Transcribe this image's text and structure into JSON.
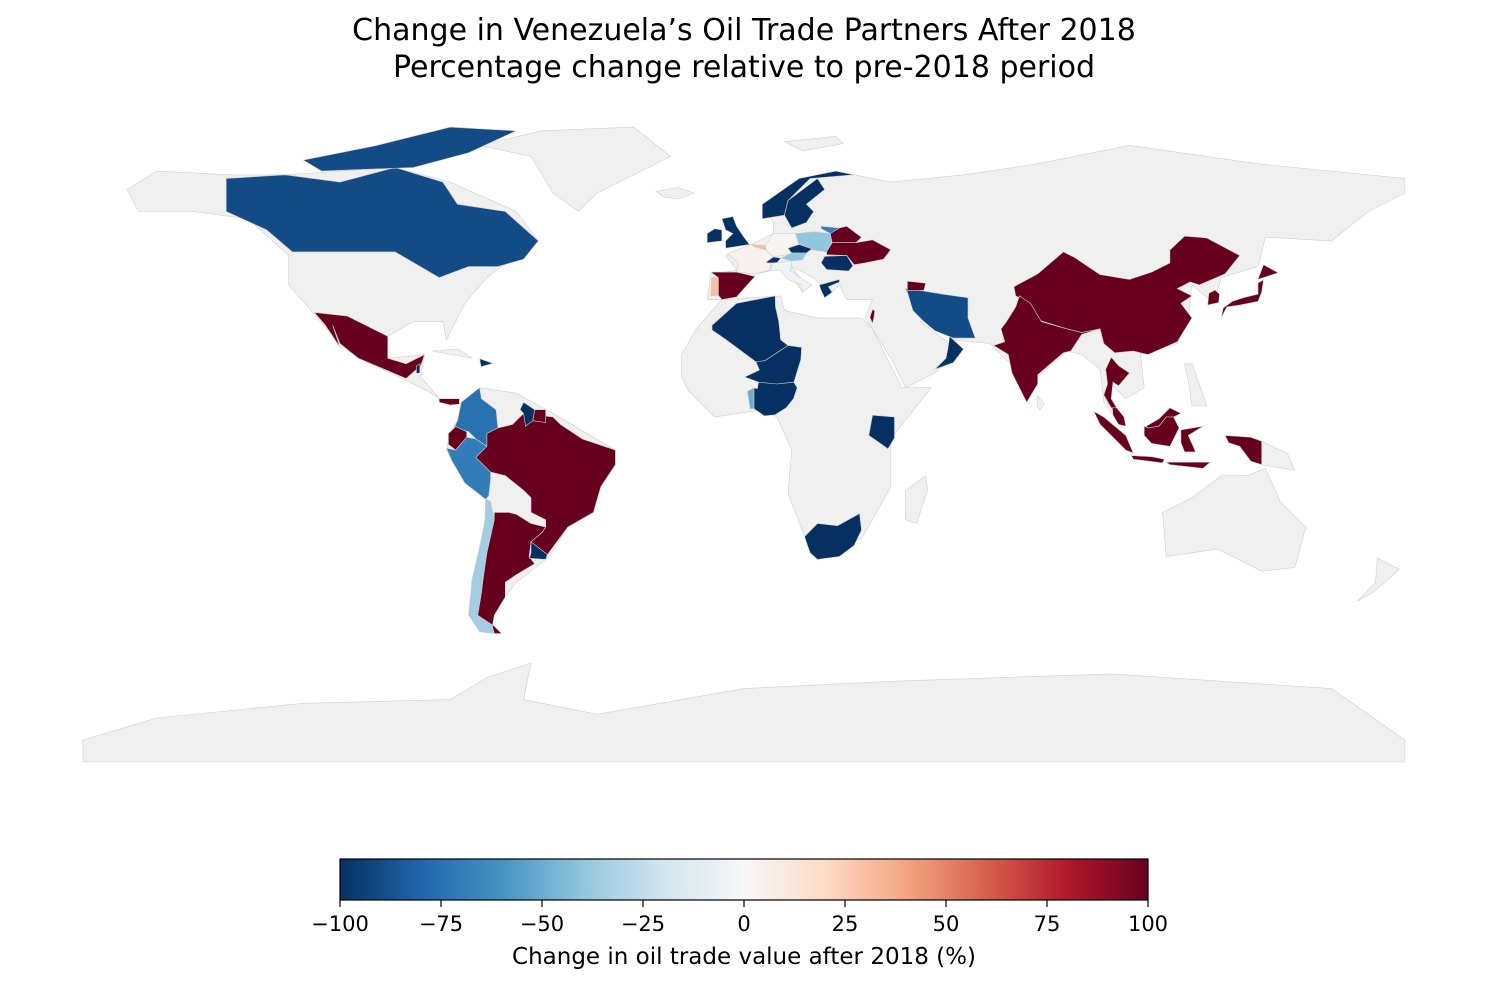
{
  "chart_data": {
    "type": "choropleth",
    "title": "Change in Venezuela’s Oil Trade Partners After 2018",
    "subtitle": "Percentage change relative to pre-2018 period",
    "colorbar": {
      "label": "Change in oil trade value after 2018 (%)",
      "range": [
        -100,
        100
      ],
      "ticks": [
        "−100",
        "−75",
        "−50",
        "−25",
        "0",
        "25",
        "50",
        "75",
        "100"
      ],
      "tick_values": [
        -100,
        -75,
        -50,
        -25,
        0,
        25,
        50,
        75,
        100
      ],
      "colormap": "RdBu_r",
      "colormap_stops": [
        "#053061",
        "#2166ac",
        "#4393c3",
        "#92c5de",
        "#d1e5f0",
        "#f7f7f7",
        "#fddbc7",
        "#f4a582",
        "#d6604d",
        "#b2182b",
        "#67001f"
      ]
    },
    "no_data_color": "#f0f0f0",
    "border_color": "#d0d0d0",
    "countries": [
      {
        "name": "Canada",
        "value": -90
      },
      {
        "name": "Mexico",
        "value": 100
      },
      {
        "name": "Belize",
        "value": -100
      },
      {
        "name": "Panama",
        "value": 100
      },
      {
        "name": "Dominican Republic",
        "value": -100
      },
      {
        "name": "Colombia",
        "value": -75
      },
      {
        "name": "Ecuador",
        "value": 100
      },
      {
        "name": "Peru",
        "value": -70
      },
      {
        "name": "Chile",
        "value": -35
      },
      {
        "name": "Argentina",
        "value": 100
      },
      {
        "name": "Uruguay",
        "value": -100
      },
      {
        "name": "Brazil",
        "value": 100
      },
      {
        "name": "Guyana",
        "value": -100
      },
      {
        "name": "Suriname",
        "value": 100
      },
      {
        "name": "United Kingdom",
        "value": -100
      },
      {
        "name": "Ireland",
        "value": -100
      },
      {
        "name": "Norway",
        "value": -100
      },
      {
        "name": "Sweden",
        "value": -100
      },
      {
        "name": "Spain",
        "value": 100
      },
      {
        "name": "Portugal",
        "value": 30
      },
      {
        "name": "France",
        "value": 4
      },
      {
        "name": "Belgium",
        "value": 30
      },
      {
        "name": "Germany",
        "value": 2
      },
      {
        "name": "Poland",
        "value": -40
      },
      {
        "name": "Czechia",
        "value": -100
      },
      {
        "name": "Austria",
        "value": -40
      },
      {
        "name": "Switzerland",
        "value": -100
      },
      {
        "name": "Italy",
        "value": -3
      },
      {
        "name": "Lithuania",
        "value": -70
      },
      {
        "name": "Belarus",
        "value": 100
      },
      {
        "name": "Ukraine",
        "value": 100
      },
      {
        "name": "Romania",
        "value": -100
      },
      {
        "name": "Greece",
        "value": -100
      },
      {
        "name": "Iran",
        "value": -90
      },
      {
        "name": "Azerbaijan",
        "value": 100
      },
      {
        "name": "Oman",
        "value": -100
      },
      {
        "name": "Israel",
        "value": 100
      },
      {
        "name": "China",
        "value": 100
      },
      {
        "name": "India",
        "value": 100
      },
      {
        "name": "Thailand",
        "value": 100
      },
      {
        "name": "Malaysia",
        "value": 100
      },
      {
        "name": "Indonesia",
        "value": 100
      },
      {
        "name": "Japan",
        "value": 100
      },
      {
        "name": "South Korea",
        "value": 100
      },
      {
        "name": "Algeria",
        "value": -100
      },
      {
        "name": "Niger",
        "value": -100
      },
      {
        "name": "Nigeria",
        "value": -100
      },
      {
        "name": "Benin",
        "value": -50
      },
      {
        "name": "Kenya",
        "value": -100
      },
      {
        "name": "South Africa",
        "value": -100
      }
    ]
  }
}
